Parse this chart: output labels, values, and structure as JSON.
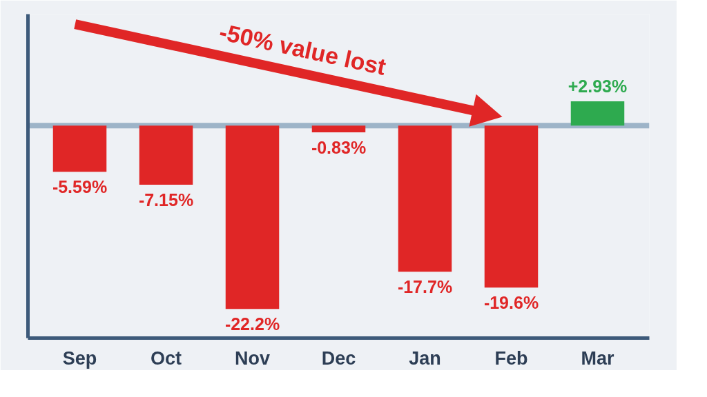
{
  "chart_data": {
    "type": "bar",
    "categories": [
      "Sep",
      "Oct",
      "Nov",
      "Dec",
      "Jan",
      "Feb",
      "Mar"
    ],
    "values": [
      -5.59,
      -7.15,
      -22.2,
      -0.83,
      -17.7,
      -19.6,
      2.93
    ],
    "colors": [
      "#e02626",
      "#e02626",
      "#e02626",
      "#e02626",
      "#e02626",
      "#e02626",
      "#2eaa4f"
    ],
    "value_labels": [
      "-5.59%",
      "-7.15%",
      "-22.2%",
      "-0.83%",
      "-17.7%",
      "-19.6%",
      "+2.93%"
    ],
    "annotations": [
      "-50% value lost"
    ],
    "ref_lines": [
      {
        "axis": "y",
        "value": 0,
        "color": "#9db4c8"
      }
    ],
    "tick_labels": "x"
  }
}
